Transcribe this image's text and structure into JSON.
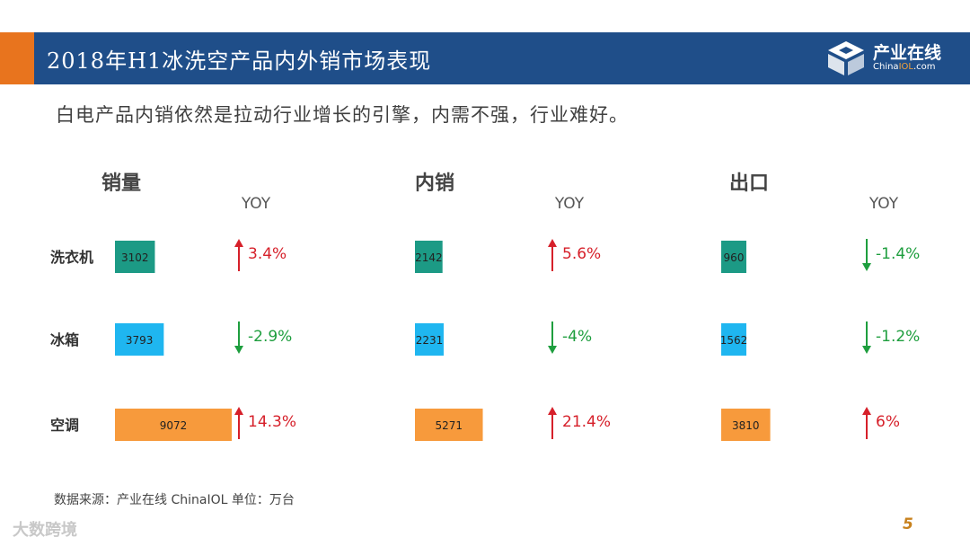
{
  "header": {
    "title": "2018年H1冰洗空产品内外销市场表现"
  },
  "logo": {
    "cn": "产业在线",
    "en_prefix": "China",
    "en_highlight": "IOL",
    "en_suffix": ".com"
  },
  "subtitle": "白电产品内销依然是拉动行业增长的引擎，内需不强，行业难好。",
  "chart_data": [
    {
      "type": "bar",
      "title": "销量",
      "yoy_label": "YOY",
      "categories": [
        "洗衣机",
        "冰箱",
        "空调"
      ],
      "values": [
        3102,
        3793,
        9072
      ],
      "yoy": [
        "3.4%",
        "-2.9%",
        "14.3%"
      ],
      "direction": [
        "up",
        "down",
        "up"
      ]
    },
    {
      "type": "bar",
      "title": "内销",
      "yoy_label": "YOY",
      "categories": [
        "洗衣机",
        "冰箱",
        "空调"
      ],
      "values": [
        2142,
        2231,
        5271
      ],
      "yoy": [
        "5.6%",
        "-4%",
        "21.4%"
      ],
      "direction": [
        "up",
        "down",
        "up"
      ]
    },
    {
      "type": "bar",
      "title": "出口",
      "yoy_label": "YOY",
      "categories": [
        "洗衣机",
        "冰箱",
        "空调"
      ],
      "values": [
        960,
        1562,
        3810
      ],
      "yoy": [
        "-1.4%",
        "-1.2%",
        "6%"
      ],
      "direction": [
        "down",
        "down",
        "up"
      ]
    }
  ],
  "colors": {
    "washer": "#1C9A85",
    "fridge": "#1FB6F0",
    "ac": "#F79A3C",
    "up": "#D6202A",
    "down": "#1E9E3E",
    "title_bar": "#1F4E89",
    "accent": "#E8741E"
  },
  "footer": {
    "source": "数据来源：产业在线 ChinaIOL  单位：万台",
    "brand": "大数跨境",
    "page": "5"
  }
}
